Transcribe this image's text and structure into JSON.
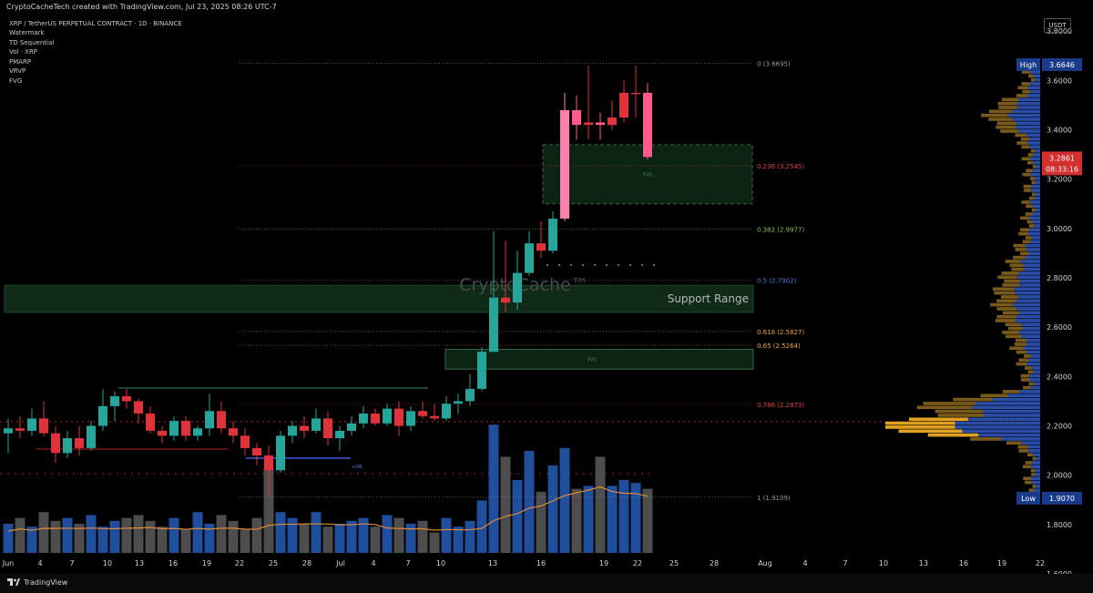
{
  "header": {
    "credit": "CryptoCacheTech created with TradingView.com, Jul 23, 2025 08:26 UTC-7",
    "symbol_line": "XRP / TetherUS PERPETUAL CONTRACT · 1D · BINANCE",
    "indicators": [
      "Watermark",
      "TD Sequential",
      "Vol · XRP",
      "PMARP",
      "VRVP",
      "FVG"
    ]
  },
  "watermark": "CryptoCache™",
  "currency": "USDT",
  "footer": {
    "brand": "TradingView"
  },
  "chart_data": {
    "type": "candlestick",
    "y_axis": {
      "range": [
        1.6,
        3.86
      ],
      "ticks": [
        "3.8000",
        "3.6000",
        "3.4000",
        "3.2000",
        "3.0000",
        "2.8000",
        "2.6000",
        "2.4000",
        "2.2000",
        "2.0000",
        "1.8000",
        "1.6000"
      ]
    },
    "x_axis": {
      "ticks": [
        "Jun",
        "4",
        "7",
        "10",
        "13",
        "16",
        "19",
        "22",
        "25",
        "28",
        "Jul",
        "4",
        "7",
        "10",
        "13",
        "16",
        "19",
        "22",
        "25",
        "28",
        "Aug",
        "4",
        "7",
        "10",
        "13",
        "16",
        "19",
        "22"
      ]
    },
    "price_badges": {
      "high": {
        "label": "High",
        "value": "3.6646"
      },
      "current": {
        "value": "3.2861",
        "countdown": "08:33:16"
      },
      "low": {
        "label": "Low",
        "value": "1.9070"
      }
    },
    "candles": [
      {
        "o": 2.17,
        "h": 2.23,
        "l": 2.09,
        "c": 2.19
      },
      {
        "o": 2.19,
        "h": 2.24,
        "l": 2.15,
        "c": 2.18
      },
      {
        "o": 2.18,
        "h": 2.27,
        "l": 2.16,
        "c": 2.23
      },
      {
        "o": 2.23,
        "h": 2.3,
        "l": 2.16,
        "c": 2.17
      },
      {
        "o": 2.17,
        "h": 2.2,
        "l": 2.05,
        "c": 2.09
      },
      {
        "o": 2.09,
        "h": 2.18,
        "l": 2.07,
        "c": 2.15
      },
      {
        "o": 2.15,
        "h": 2.2,
        "l": 2.08,
        "c": 2.11
      },
      {
        "o": 2.11,
        "h": 2.22,
        "l": 2.1,
        "c": 2.2
      },
      {
        "o": 2.2,
        "h": 2.35,
        "l": 2.18,
        "c": 2.28
      },
      {
        "o": 2.28,
        "h": 2.34,
        "l": 2.22,
        "c": 2.32
      },
      {
        "o": 2.32,
        "h": 2.35,
        "l": 2.27,
        "c": 2.3
      },
      {
        "o": 2.3,
        "h": 2.31,
        "l": 2.21,
        "c": 2.25
      },
      {
        "o": 2.25,
        "h": 2.28,
        "l": 2.17,
        "c": 2.18
      },
      {
        "o": 2.18,
        "h": 2.2,
        "l": 2.13,
        "c": 2.16
      },
      {
        "o": 2.16,
        "h": 2.24,
        "l": 2.14,
        "c": 2.22
      },
      {
        "o": 2.22,
        "h": 2.24,
        "l": 2.14,
        "c": 2.16
      },
      {
        "o": 2.16,
        "h": 2.2,
        "l": 2.14,
        "c": 2.19
      },
      {
        "o": 2.19,
        "h": 2.33,
        "l": 2.16,
        "c": 2.26
      },
      {
        "o": 2.26,
        "h": 2.3,
        "l": 2.17,
        "c": 2.19
      },
      {
        "o": 2.19,
        "h": 2.22,
        "l": 2.13,
        "c": 2.16
      },
      {
        "o": 2.16,
        "h": 2.19,
        "l": 2.08,
        "c": 2.11
      },
      {
        "o": 2.11,
        "h": 2.13,
        "l": 2.04,
        "c": 2.08
      },
      {
        "o": 2.08,
        "h": 2.12,
        "l": 1.91,
        "c": 2.02
      },
      {
        "o": 2.02,
        "h": 2.18,
        "l": 2.01,
        "c": 2.16
      },
      {
        "o": 2.16,
        "h": 2.22,
        "l": 2.13,
        "c": 2.2
      },
      {
        "o": 2.2,
        "h": 2.24,
        "l": 2.15,
        "c": 2.18
      },
      {
        "o": 2.18,
        "h": 2.27,
        "l": 2.17,
        "c": 2.23
      },
      {
        "o": 2.23,
        "h": 2.26,
        "l": 2.12,
        "c": 2.15
      },
      {
        "o": 2.15,
        "h": 2.2,
        "l": 2.1,
        "c": 2.18
      },
      {
        "o": 2.18,
        "h": 2.24,
        "l": 2.16,
        "c": 2.21
      },
      {
        "o": 2.21,
        "h": 2.28,
        "l": 2.19,
        "c": 2.25
      },
      {
        "o": 2.25,
        "h": 2.27,
        "l": 2.2,
        "c": 2.21
      },
      {
        "o": 2.21,
        "h": 2.29,
        "l": 2.2,
        "c": 2.27
      },
      {
        "o": 2.27,
        "h": 2.3,
        "l": 2.16,
        "c": 2.2
      },
      {
        "o": 2.2,
        "h": 2.28,
        "l": 2.18,
        "c": 2.26
      },
      {
        "o": 2.26,
        "h": 2.3,
        "l": 2.23,
        "c": 2.24
      },
      {
        "o": 2.24,
        "h": 2.29,
        "l": 2.22,
        "c": 2.23
      },
      {
        "o": 2.23,
        "h": 2.32,
        "l": 2.22,
        "c": 2.29
      },
      {
        "o": 2.29,
        "h": 2.33,
        "l": 2.25,
        "c": 2.3
      },
      {
        "o": 2.3,
        "h": 2.41,
        "l": 2.28,
        "c": 2.35
      },
      {
        "o": 2.35,
        "h": 2.52,
        "l": 2.34,
        "c": 2.5
      },
      {
        "o": 2.5,
        "h": 2.99,
        "l": 2.5,
        "c": 2.72
      },
      {
        "o": 2.72,
        "h": 2.95,
        "l": 2.66,
        "c": 2.7
      },
      {
        "o": 2.7,
        "h": 2.91,
        "l": 2.67,
        "c": 2.82
      },
      {
        "o": 2.82,
        "h": 2.99,
        "l": 2.81,
        "c": 2.94
      },
      {
        "o": 2.94,
        "h": 3.03,
        "l": 2.88,
        "c": 2.91
      },
      {
        "o": 2.91,
        "h": 3.07,
        "l": 2.9,
        "c": 3.04
      },
      {
        "o": 3.04,
        "h": 3.55,
        "l": 3.03,
        "c": 3.48
      },
      {
        "o": 3.48,
        "h": 3.54,
        "l": 3.36,
        "c": 3.42
      },
      {
        "o": 3.42,
        "h": 3.66,
        "l": 3.36,
        "c": 3.43
      },
      {
        "o": 3.43,
        "h": 3.47,
        "l": 3.36,
        "c": 3.42
      },
      {
        "o": 3.42,
        "h": 3.52,
        "l": 3.4,
        "c": 3.45
      },
      {
        "o": 3.45,
        "h": 3.6,
        "l": 3.43,
        "c": 3.55
      },
      {
        "o": 3.55,
        "h": 3.66,
        "l": 3.45,
        "c": 3.55
      },
      {
        "o": 3.55,
        "h": 3.59,
        "l": 3.28,
        "c": 3.29
      }
    ],
    "volume": [
      0.1,
      0.12,
      0.09,
      0.14,
      0.11,
      0.12,
      0.1,
      0.13,
      0.09,
      0.11,
      0.12,
      0.13,
      0.11,
      0.09,
      0.12,
      0.08,
      0.14,
      0.1,
      0.13,
      0.11,
      0.08,
      0.12,
      0.29,
      0.14,
      0.12,
      0.1,
      0.14,
      0.09,
      0.1,
      0.11,
      0.12,
      0.09,
      0.13,
      0.12,
      0.1,
      0.11,
      0.07,
      0.12,
      0.09,
      0.11,
      0.18,
      0.44,
      0.33,
      0.25,
      0.35,
      0.21,
      0.3,
      0.36,
      0.22,
      0.23,
      0.33,
      0.23,
      0.25,
      0.24,
      0.22
    ],
    "fib_levels": [
      {
        "label": "0 (3.6695)",
        "value": 3.6695,
        "color": "#9a9a9a"
      },
      {
        "label": "0.236 (3.2545)",
        "value": 3.2545,
        "color": "#e0403a"
      },
      {
        "label": "0.382 (2.9977)",
        "value": 2.9977,
        "color": "#8bc34a"
      },
      {
        "label": "0.5 (2.7902)",
        "value": 2.7902,
        "color": "#4a7ad8"
      },
      {
        "label": "0.618 (2.5827)",
        "value": 2.5827,
        "color": "#f0a23a"
      },
      {
        "label": "0.65 (2.5264)",
        "value": 2.5264,
        "color": "#f0a23a"
      },
      {
        "label": "0.786 (2.2873)",
        "value": 2.2873,
        "color": "#e0403a"
      },
      {
        "label": "1 (1.9109)",
        "value": 1.9109,
        "color": "#9a9a9a"
      }
    ],
    "zones": [
      {
        "label": "Support Range",
        "top": 2.77,
        "bottom": 2.66
      },
      {
        "label": "FVG",
        "top": 3.34,
        "bottom": 3.1
      },
      {
        "label": "FVG",
        "top": 2.51,
        "bottom": 2.43
      }
    ],
    "legend_labels": [
      "FVG",
      "FVG",
      "+OB"
    ]
  }
}
